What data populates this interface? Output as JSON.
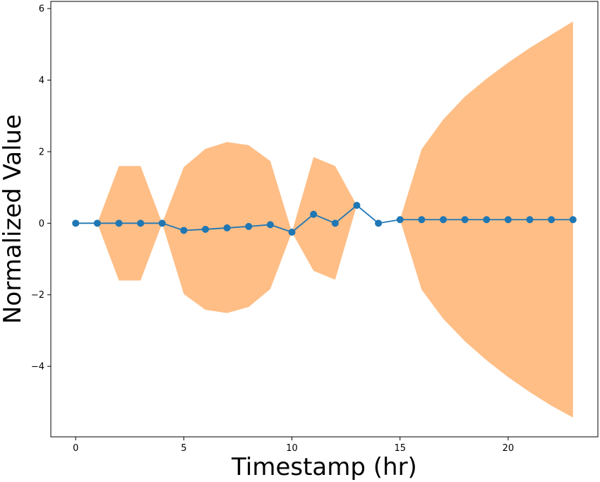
{
  "chart_data": {
    "type": "line",
    "title": "",
    "xlabel": "Timestamp (hr)",
    "ylabel": "Normalized Value",
    "xlim": [
      -1.15,
      24.15
    ],
    "ylim": [
      -5.97,
      6.2
    ],
    "grid": false,
    "x_ticks": [
      0,
      5,
      10,
      15,
      20
    ],
    "y_ticks": [
      -4,
      -2,
      0,
      2,
      4,
      6
    ],
    "x_tick_labels": [
      "0",
      "5",
      "10",
      "15",
      "20"
    ],
    "y_tick_labels": [
      "−4",
      "−2",
      "0",
      "2",
      "4",
      "6"
    ],
    "colors": {
      "line": "#1f77b4",
      "band": "#ffbe86"
    },
    "series": [
      {
        "x": [
          0,
          1,
          2,
          3,
          4,
          5,
          6,
          7,
          8,
          9,
          10,
          11,
          12,
          13,
          14,
          15,
          16,
          17,
          18,
          19,
          20,
          21,
          22,
          23
        ],
        "values": [
          0,
          0,
          0,
          0,
          0,
          -0.2,
          -0.17,
          -0.13,
          -0.09,
          -0.04,
          -0.25,
          0.25,
          0,
          0.5,
          0,
          0.1,
          0.1,
          0.1,
          0.1,
          0.1,
          0.1,
          0.1,
          0.1,
          0.1
        ]
      }
    ],
    "band": {
      "x": [
        0,
        1,
        2,
        3,
        4,
        5,
        6,
        7,
        8,
        9,
        10,
        11,
        12,
        13,
        14,
        15,
        16,
        17,
        18,
        19,
        20,
        21,
        22,
        23
      ],
      "upper": [
        0,
        0,
        1.6,
        1.6,
        0,
        1.57,
        2.08,
        2.27,
        2.18,
        1.74,
        -0.25,
        1.85,
        1.6,
        0.5,
        0,
        0.1,
        2.07,
        2.9,
        3.54,
        4.04,
        4.49,
        4.9,
        5.27,
        5.64
      ],
      "lower": [
        0,
        0,
        -1.6,
        -1.6,
        0,
        -1.98,
        -2.42,
        -2.51,
        -2.34,
        -1.84,
        -0.25,
        -1.33,
        -1.58,
        0.5,
        0,
        0.1,
        -1.86,
        -2.67,
        -3.3,
        -3.83,
        -4.3,
        -4.72,
        -5.1,
        -5.43
      ]
    }
  }
}
